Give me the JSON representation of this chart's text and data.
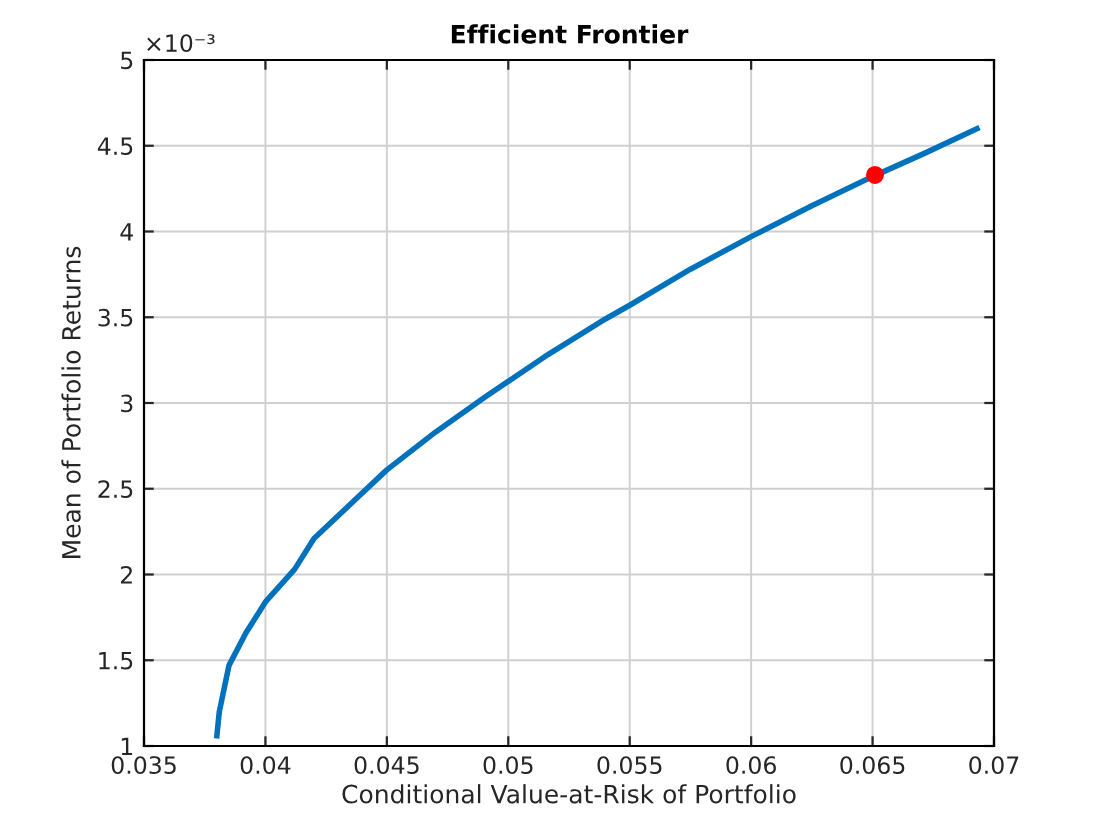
{
  "chart_data": {
    "type": "line",
    "title": "Efficient Frontier",
    "xlabel": "Conditional Value-at-Risk of Portfolio",
    "ylabel": "Mean of Portfolio Returns",
    "annotations": [
      "×10⁻³"
    ],
    "series": [
      {
        "color": "#0072bd",
        "x": [
          0.038,
          0.0381,
          0.0385,
          0.0392,
          0.04,
          0.0412,
          0.042,
          0.0438,
          0.045,
          0.047,
          0.049,
          0.0515,
          0.054,
          0.055,
          0.0575,
          0.06,
          0.0625,
          0.065,
          0.0672,
          0.0693
        ],
        "values": [
          1.06,
          1.2,
          1.47,
          1.66,
          1.84,
          2.03,
          2.21,
          2.45,
          2.61,
          2.83,
          3.03,
          3.27,
          3.49,
          3.57,
          3.78,
          3.97,
          4.15,
          4.32,
          4.46,
          4.6
        ]
      },
      {
        "type": "scatter",
        "color": "#ff0000",
        "marker": "circle",
        "x": [
          0.0651
        ],
        "values": [
          4.33
        ]
      }
    ],
    "xlim": [
      0.035,
      0.07
    ],
    "xticks": [
      0.035,
      0.04,
      0.045,
      0.05,
      0.055,
      0.06,
      0.065,
      0.07
    ],
    "ylim": [
      1,
      5
    ],
    "yticks": [
      1,
      1.5,
      2,
      2.5,
      3,
      3.5,
      4,
      4.5,
      5
    ],
    "grid": true
  }
}
